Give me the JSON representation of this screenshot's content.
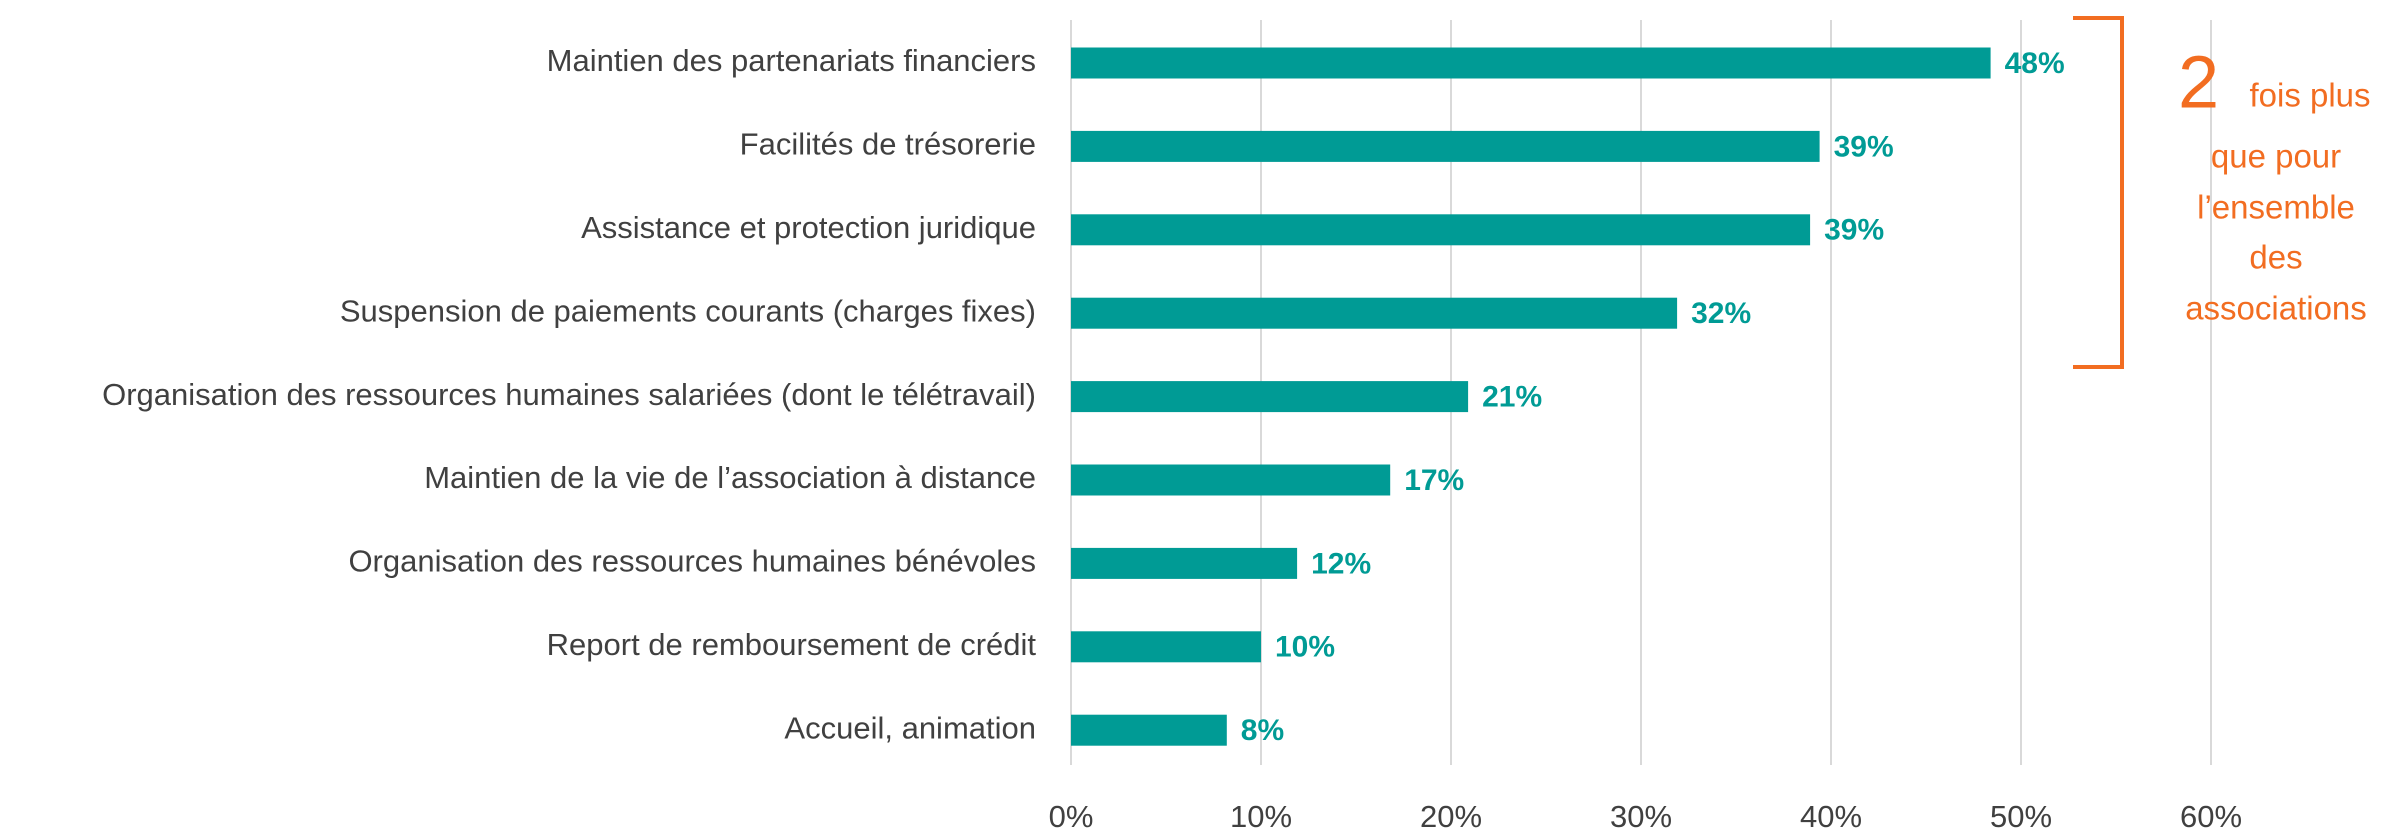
{
  "chart_data": {
    "type": "bar",
    "orientation": "horizontal",
    "categories": [
      "Maintien des partenariats financiers",
      "Facilités de trésorerie",
      "Assistance et protection juridique",
      "Suspension de paiements courants (charges fixes)",
      "Organisation des ressources humaines salariées (dont le télétravail)",
      "Maintien de la vie de l’association à distance",
      "Organisation des ressources humaines bénévoles",
      "Report de remboursement de crédit",
      "Accueil, animation"
    ],
    "values": [
      48.4,
      39.4,
      38.9,
      31.9,
      20.9,
      16.8,
      11.9,
      10.0,
      8.2
    ],
    "value_labels": [
      "48%",
      "39%",
      "39%",
      "32%",
      "21%",
      "17%",
      "12%",
      "10%",
      "8%"
    ],
    "color": "#009b95",
    "xlim": [
      0,
      60
    ],
    "xticks": [
      {
        "value": 0,
        "label": "0%"
      },
      {
        "value": 10,
        "label": "10%"
      },
      {
        "value": 20,
        "label": "20%"
      },
      {
        "value": 30,
        "label": "30%"
      },
      {
        "value": 40,
        "label": "40%"
      },
      {
        "value": 50,
        "label": "50%"
      },
      {
        "value": 60,
        "label": "60%"
      }
    ],
    "grid": true,
    "annotation": {
      "number": "2",
      "lines": [
        "fois plus",
        "que pour",
        "l’ensemble",
        "des",
        "associations"
      ],
      "color": "#f26d21"
    }
  }
}
